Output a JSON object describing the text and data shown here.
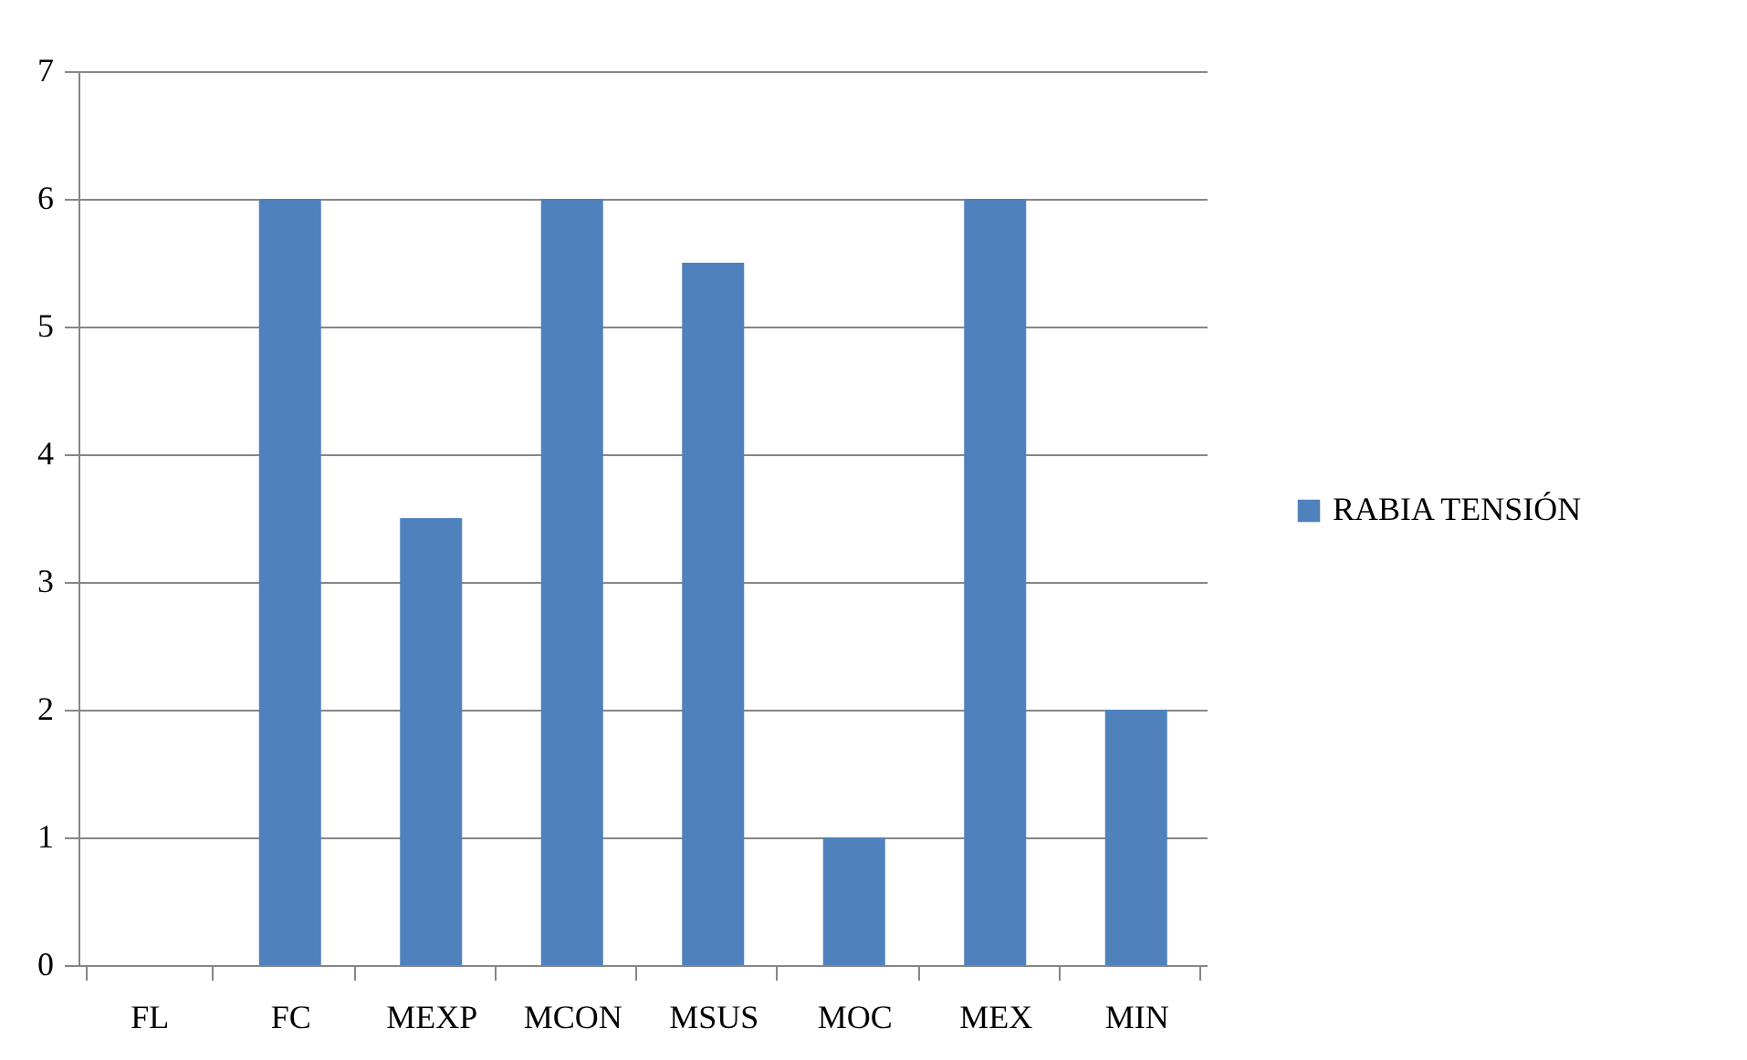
{
  "chart_data": {
    "type": "bar",
    "categories": [
      "FL",
      "FC",
      "MEXP",
      "MCON",
      "MSUS",
      "MOC",
      "MEX",
      "MIN"
    ],
    "series": [
      {
        "name": "RABIA TENSIÓN",
        "color": "#4f81bd",
        "values": [
          0,
          6,
          3.5,
          6,
          5.5,
          1,
          6,
          2
        ]
      }
    ],
    "ylim": [
      0,
      7
    ],
    "yticks": [
      0,
      1,
      2,
      3,
      4,
      5,
      6,
      7
    ],
    "grid": "y",
    "legend": "right"
  }
}
